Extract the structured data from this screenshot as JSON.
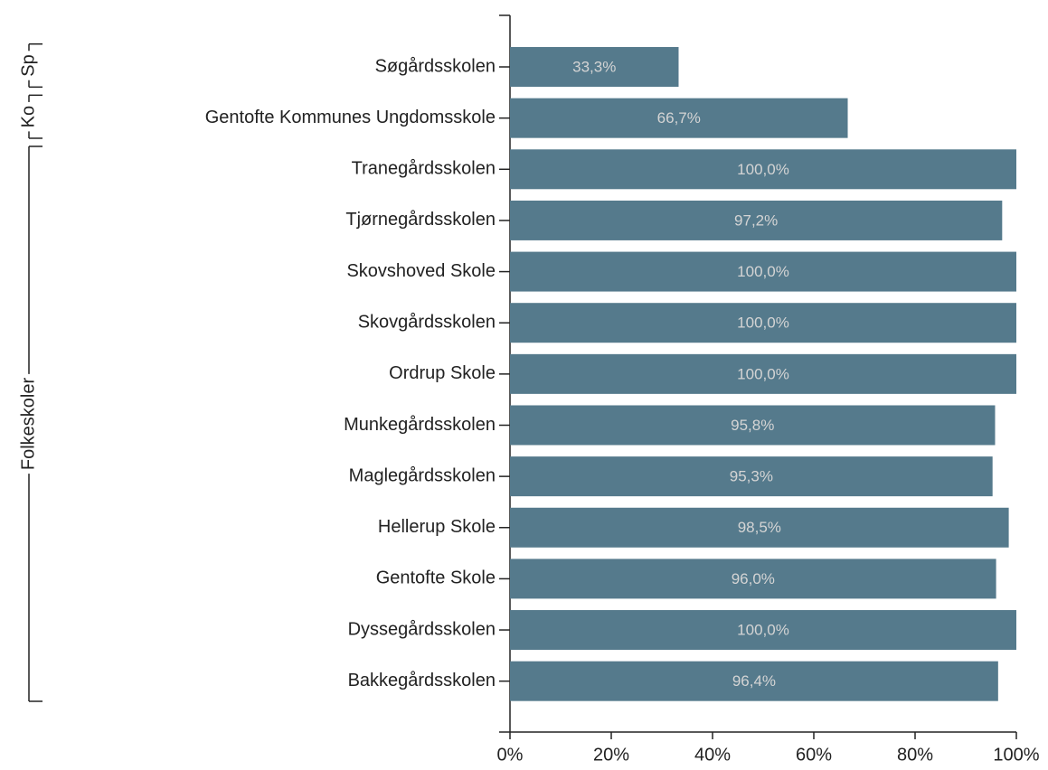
{
  "chart_data": {
    "type": "hbar",
    "categories": [
      "Søgårdsskolen",
      "Gentofte Kommunes Ungdomsskole",
      "Tranegårdsskolen",
      "Tjørnegårdsskolen",
      "Skovshoved Skole",
      "Skovgårdsskolen",
      "Ordrup Skole",
      "Munkegårdsskolen",
      "Maglegårdsskolen",
      "Hellerup Skole",
      "Gentofte Skole",
      "Dyssegårdsskolen",
      "Bakkegårdsskolen"
    ],
    "values": [
      33.3,
      66.7,
      100.0,
      97.2,
      100.0,
      100.0,
      100.0,
      95.8,
      95.3,
      98.5,
      96.0,
      100.0,
      96.4
    ],
    "value_labels": [
      "33,3%",
      "66,7%",
      "100,0%",
      "97,2%",
      "100,0%",
      "100,0%",
      "100,0%",
      "95,8%",
      "95,3%",
      "98,5%",
      "96,0%",
      "100,0%",
      "96,4%"
    ],
    "groups": [
      {
        "label": "Sp",
        "size": 1
      },
      {
        "label": "Ko",
        "size": 1
      },
      {
        "label": "Folkeskoler",
        "size": 11
      }
    ],
    "color": "#557a8c",
    "xlim": [
      0,
      100
    ],
    "xticks": [
      {
        "value": 0,
        "label": "0%"
      },
      {
        "value": 20,
        "label": "20%"
      },
      {
        "value": 40,
        "label": "40%"
      },
      {
        "value": 60,
        "label": "60%"
      },
      {
        "value": 80,
        "label": "80%"
      },
      {
        "value": 100,
        "label": "100%"
      }
    ]
  }
}
